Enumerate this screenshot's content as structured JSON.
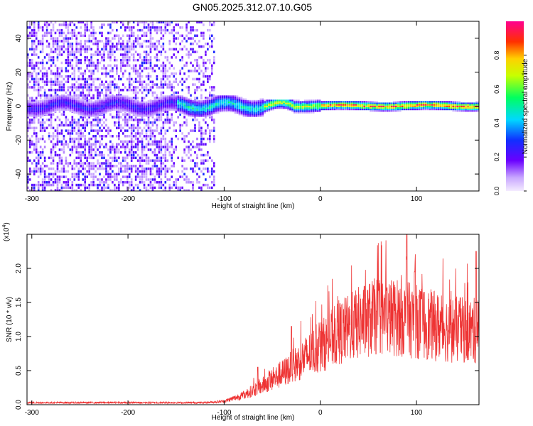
{
  "title": "GN05.2025.312.07.10.G05",
  "colorbar": {
    "label": "Normalized spectral amplitude",
    "ticks": [
      "0.0",
      "0.2",
      "0.4",
      "0.6",
      "0.8"
    ],
    "tick_values": [
      0.0,
      0.2,
      0.4,
      0.6,
      0.8
    ],
    "range": [
      0,
      1
    ]
  },
  "chart_data": [
    {
      "type": "heatmap",
      "xlabel": "Height of straight line (km)",
      "ylabel": "Frequency (Hz)",
      "xlim": [
        -305,
        165
      ],
      "ylim": [
        -50,
        50
      ],
      "xticks": [
        -300,
        -200,
        -100,
        0,
        100
      ],
      "xtick_labels": [
        "-300",
        "-200",
        "-100",
        "0",
        "100"
      ],
      "yticks": [
        -40,
        -20,
        0,
        20,
        40
      ],
      "ytick_labels": [
        "-40",
        "-20",
        "0",
        "20",
        "40"
      ],
      "colormap": "rainbow (violet=0 to magenta=1)",
      "grid": false
    },
    {
      "type": "line",
      "xlabel": "Height of straight line (km)",
      "ylabel": "SNR (10 * v/v)",
      "y_multiplier": "(x10^4)",
      "xlim": [
        -305,
        165
      ],
      "ylim": [
        0,
        2.5
      ],
      "xticks": [
        -300,
        -200,
        -100,
        0,
        100
      ],
      "xtick_labels": [
        "-300",
        "-200",
        "-100",
        "0",
        "100"
      ],
      "yticks": [
        0.0,
        0.5,
        1.0,
        1.5,
        2.0
      ],
      "ytick_labels": [
        "0.0",
        "0.5",
        "1.0",
        "1.5",
        "2.0"
      ],
      "color": "#ee3333",
      "envelope_x": [
        -305,
        -120,
        -100,
        -80,
        -60,
        -40,
        -20,
        0,
        20,
        40,
        60,
        80,
        100,
        120,
        140,
        165
      ],
      "envelope_y": [
        0.03,
        0.03,
        0.05,
        0.14,
        0.28,
        0.45,
        0.65,
        0.85,
        1.05,
        1.2,
        1.3,
        1.28,
        1.22,
        1.15,
        1.1,
        1.08
      ],
      "peaks": [
        [
          -65,
          0.55
        ],
        [
          -30,
          1.15
        ],
        [
          90,
          2.55
        ],
        [
          162,
          2.25
        ],
        [
          98,
          1.95
        ]
      ],
      "grid": false
    }
  ]
}
